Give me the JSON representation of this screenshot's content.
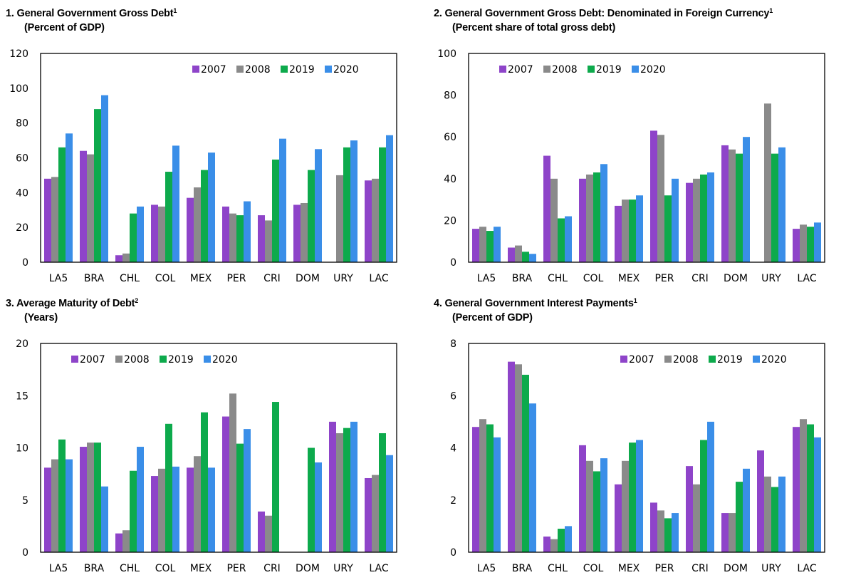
{
  "colors": {
    "2007": "#8e44c9",
    "2008": "#8a8a8a",
    "2019": "#0daa4c",
    "2020": "#3a8ee8"
  },
  "chart_data": [
    {
      "type": "bar",
      "title": "1.  General Government Gross Debt",
      "title_note": "1",
      "subtitle": "(Percent of GDP)",
      "categories": [
        "LA5",
        "BRA",
        "CHL",
        "COL",
        "MEX",
        "PER",
        "CRI",
        "DOM",
        "URY",
        "LAC"
      ],
      "ylim": [
        0,
        120
      ],
      "yticks": [
        0,
        20,
        40,
        60,
        80,
        100,
        120
      ],
      "legend": "top-right",
      "series": [
        {
          "name": "2007",
          "values": [
            48,
            64,
            4,
            33,
            37,
            32,
            27,
            33,
            null,
            47
          ]
        },
        {
          "name": "2008",
          "values": [
            49,
            62,
            5,
            32,
            43,
            28,
            24,
            34,
            50,
            48
          ]
        },
        {
          "name": "2019",
          "values": [
            66,
            88,
            28,
            52,
            53,
            27,
            59,
            53,
            66,
            66
          ]
        },
        {
          "name": "2020",
          "values": [
            74,
            96,
            32,
            67,
            63,
            35,
            71,
            65,
            70,
            73
          ]
        }
      ]
    },
    {
      "type": "bar",
      "title": "2.  General Government Gross Debt: Denominated in Foreign Currency",
      "title_note": "1",
      "subtitle": "(Percent share of total gross debt)",
      "categories": [
        "LA5",
        "BRA",
        "CHL",
        "COL",
        "MEX",
        "PER",
        "CRI",
        "DOM",
        "URY",
        "LAC"
      ],
      "ylim": [
        0,
        100
      ],
      "yticks": [
        0,
        20,
        40,
        60,
        80,
        100
      ],
      "legend": "top-left",
      "series": [
        {
          "name": "2007",
          "values": [
            16,
            7,
            51,
            40,
            27,
            63,
            38,
            56,
            null,
            16
          ]
        },
        {
          "name": "2008",
          "values": [
            17,
            8,
            40,
            42,
            30,
            61,
            40,
            54,
            76,
            18
          ]
        },
        {
          "name": "2019",
          "values": [
            15,
            5,
            21,
            43,
            30,
            32,
            42,
            52,
            52,
            17
          ]
        },
        {
          "name": "2020",
          "values": [
            17,
            4,
            22,
            47,
            32,
            40,
            43,
            60,
            55,
            19
          ]
        }
      ]
    },
    {
      "type": "bar",
      "title": "3.  Average Maturity of Debt",
      "title_note": "2",
      "subtitle": "(Years)",
      "categories": [
        "LA5",
        "BRA",
        "CHL",
        "COL",
        "MEX",
        "PER",
        "CRI",
        "DOM",
        "URY",
        "LAC"
      ],
      "ylim": [
        0,
        20
      ],
      "yticks": [
        0,
        5,
        10,
        15,
        20
      ],
      "legend": "top-left",
      "series": [
        {
          "name": "2007",
          "values": [
            8.1,
            10.1,
            1.8,
            7.3,
            8.1,
            13.0,
            3.9,
            null,
            12.5,
            7.1
          ]
        },
        {
          "name": "2008",
          "values": [
            8.9,
            10.5,
            2.1,
            8.0,
            9.2,
            15.2,
            3.5,
            null,
            11.4,
            7.4
          ]
        },
        {
          "name": "2019",
          "values": [
            10.8,
            10.5,
            7.8,
            12.3,
            13.4,
            10.4,
            14.4,
            10.0,
            11.9,
            11.4
          ]
        },
        {
          "name": "2020",
          "values": [
            8.9,
            6.3,
            10.1,
            8.2,
            8.1,
            11.8,
            null,
            8.6,
            12.5,
            9.3
          ]
        }
      ]
    },
    {
      "type": "bar",
      "title": "4.  General Government Interest Payments",
      "title_note": "1",
      "subtitle": "(Percent of GDP)",
      "categories": [
        "LA5",
        "BRA",
        "CHL",
        "COL",
        "MEX",
        "PER",
        "CRI",
        "DOM",
        "URY",
        "LAC"
      ],
      "ylim": [
        0,
        8
      ],
      "yticks": [
        0,
        2,
        4,
        6,
        8
      ],
      "legend": "top-right",
      "series": [
        {
          "name": "2007",
          "values": [
            4.8,
            7.3,
            0.6,
            4.1,
            2.6,
            1.9,
            3.3,
            1.5,
            3.9,
            4.8
          ]
        },
        {
          "name": "2008",
          "values": [
            5.1,
            7.2,
            0.5,
            3.5,
            3.5,
            1.6,
            2.6,
            1.5,
            2.9,
            5.1
          ]
        },
        {
          "name": "2019",
          "values": [
            4.9,
            6.8,
            0.9,
            3.1,
            4.2,
            1.3,
            4.3,
            2.7,
            2.5,
            4.9
          ]
        },
        {
          "name": "2020",
          "values": [
            4.4,
            5.7,
            1.0,
            3.6,
            4.3,
            1.5,
            5.0,
            3.2,
            2.9,
            4.4
          ]
        }
      ]
    }
  ]
}
